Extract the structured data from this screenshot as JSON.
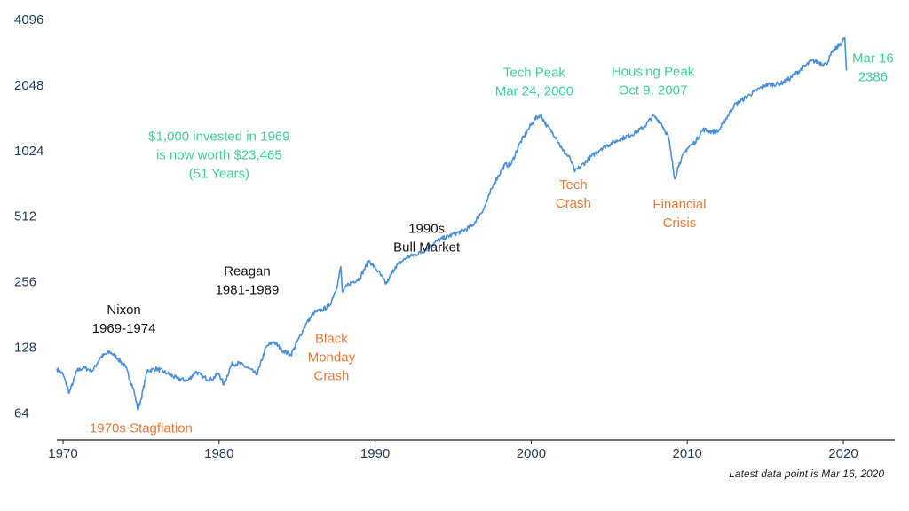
{
  "colors": {
    "line": "#4a90d9",
    "axis_text": "#1f3b5c",
    "peak": "#3ecf98",
    "crash": "#e8793a",
    "era": "#111111",
    "axis_line": "#222222"
  },
  "footnote": "Latest data point is Mar 16, 2020",
  "chart_data": {
    "type": "line",
    "y_scale": "log2",
    "ylim": [
      48,
      4096
    ],
    "xlim": [
      1969.6,
      2023.3
    ],
    "y_ticks": [
      {
        "value": 64,
        "label": "64"
      },
      {
        "value": 128,
        "label": "128"
      },
      {
        "value": 256,
        "label": "256"
      },
      {
        "value": 512,
        "label": "512"
      },
      {
        "value": 1024,
        "label": "1024"
      },
      {
        "value": 2048,
        "label": "2048"
      },
      {
        "value": 4096,
        "label": "4096"
      }
    ],
    "x_ticks": [
      {
        "value": 1970,
        "label": "1970"
      },
      {
        "value": 1980,
        "label": "1980"
      },
      {
        "value": 1990,
        "label": "1990"
      },
      {
        "value": 2000,
        "label": "2000"
      },
      {
        "value": 2010,
        "label": "2010"
      },
      {
        "value": 2020,
        "label": "2020"
      }
    ],
    "grid": false,
    "series": [
      {
        "x": [
          1969.6,
          1970.0,
          1970.4,
          1970.9,
          1971.3,
          1971.9,
          1972.4,
          1973.0,
          1973.5,
          1974.0,
          1974.5,
          1974.8,
          1975.0,
          1975.4,
          1976.0,
          1976.7,
          1977.3,
          1978.0,
          1978.5,
          1979.0,
          1979.5,
          1980.0,
          1980.3,
          1980.8,
          1981.3,
          1981.9,
          1982.4,
          1982.6,
          1983.0,
          1983.5,
          1984.0,
          1984.6,
          1985.1,
          1985.6,
          1986.1,
          1986.6,
          1987.1,
          1987.6,
          1987.8,
          1987.9,
          1988.3,
          1989.0,
          1989.6,
          1990.2,
          1990.7,
          1990.9,
          1991.3,
          1992.0,
          1993.0,
          1994.0,
          1994.9,
          1995.5,
          1996.2,
          1997.0,
          1997.6,
          1998.3,
          1998.7,
          1999.2,
          1999.8,
          2000.2,
          2000.6,
          2001.0,
          2001.6,
          2002.0,
          2002.5,
          2002.8,
          2003.2,
          2003.7,
          2004.5,
          2005.3,
          2006.0,
          2006.7,
          2007.3,
          2007.8,
          2008.3,
          2008.8,
          2009.2,
          2009.5,
          2010.0,
          2010.5,
          2011.0,
          2011.6,
          2012.0,
          2013.0,
          2014.0,
          2015.0,
          2016.0,
          2016.6,
          2017.0,
          2018.0,
          2018.9,
          2019.3,
          2019.8,
          2020.1,
          2020.2
        ],
        "y": [
          102,
          96,
          79,
          100,
          103,
          100,
          115,
          122,
          114,
          104,
          83,
          66,
          74,
          100,
          102,
          97,
          92,
          90,
          99,
          93,
          91,
          97,
          86,
          107,
          108,
          102,
          96,
          104,
          128,
          136,
          125,
          118,
          140,
          165,
          185,
          190,
          200,
          250,
          300,
          230,
          250,
          265,
          320,
          285,
          250,
          265,
          300,
          330,
          350,
          395,
          420,
          435,
          460,
          560,
          720,
          880,
          880,
          1080,
          1280,
          1420,
          1500,
          1330,
          1180,
          1030,
          940,
          820,
          870,
          940,
          1050,
          1120,
          1180,
          1240,
          1330,
          1480,
          1380,
          1180,
          760,
          900,
          1050,
          1120,
          1280,
          1250,
          1260,
          1650,
          1850,
          2050,
          2080,
          2200,
          2330,
          2650,
          2550,
          2900,
          3150,
          3370,
          2386
        ],
        "endpoint": {
          "x": 2020.21,
          "y": 2386
        }
      }
    ],
    "annotations": [
      {
        "lines": [
          "$1,000 invested in 1969",
          "is now worth $23,465",
          "(51 Years)"
        ],
        "x": 1980.0,
        "y": 1138,
        "color": "peak"
      },
      {
        "lines": [
          "Tech Peak",
          "Mar 24, 2000"
        ],
        "x": 2000.2,
        "y": 2240,
        "color": "peak"
      },
      {
        "lines": [
          "Housing Peak",
          "Oct 9, 2007"
        ],
        "x": 2007.8,
        "y": 2260,
        "color": "peak"
      },
      {
        "lines": [
          "Mar 16",
          "2386"
        ],
        "x": 2021.9,
        "y": 2600,
        "color": "peak"
      },
      {
        "lines": [
          "Nixon",
          "1969-1974"
        ],
        "x": 1973.9,
        "y": 182,
        "color": "era"
      },
      {
        "lines": [
          "Reagan",
          "1981-1989"
        ],
        "x": 1981.8,
        "y": 273,
        "color": "era"
      },
      {
        "lines": [
          "1990s",
          "Bull Market"
        ],
        "x": 1993.3,
        "y": 430,
        "color": "era"
      },
      {
        "lines": [
          "1970s Stagflation"
        ],
        "x": 1975.0,
        "y": 52,
        "color": "crash"
      },
      {
        "lines": [
          "Black",
          "Monday",
          "Crash"
        ],
        "x": 1987.2,
        "y": 134,
        "color": "crash"
      },
      {
        "lines": [
          "Tech",
          "Crash"
        ],
        "x": 2002.7,
        "y": 684,
        "color": "crash"
      },
      {
        "lines": [
          "Financial",
          "Crisis"
        ],
        "x": 2009.5,
        "y": 555,
        "color": "crash"
      }
    ]
  }
}
